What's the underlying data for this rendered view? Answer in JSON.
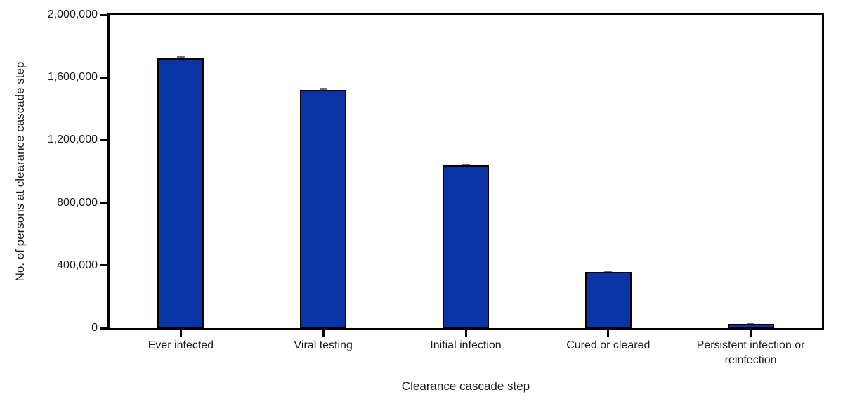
{
  "figure": {
    "background_color": "#ffffff",
    "axis_color": "#000000",
    "text_color": "#1a1a1a"
  },
  "chart_data": {
    "type": "bar",
    "title": "",
    "xlabel": "Clearance cascade step",
    "ylabel": "No. of persons at clearance cascade step",
    "categories": [
      "Ever infected",
      "Viral testing",
      "Initial infection",
      "Cured or cleared",
      "Persistent infection or\nreinfection"
    ],
    "values": [
      1720000,
      1520000,
      1040000,
      360000,
      25000
    ],
    "errors": [
      15000,
      12000,
      10000,
      4000,
      2000
    ],
    "ylim": [
      0,
      2000000
    ],
    "yticks": [
      {
        "value": 0,
        "label": "0"
      },
      {
        "value": 400000,
        "label": "400,000"
      },
      {
        "value": 800000,
        "label": "800,000"
      },
      {
        "value": 1200000,
        "label": "1,200,000"
      },
      {
        "value": 1600000,
        "label": "1,600,000"
      },
      {
        "value": 2000000,
        "label": "2,000,000"
      }
    ],
    "grid": false,
    "legend": null,
    "bar_color": "#0834a6",
    "bar_border_color": "#000000",
    "error_bar_color": "#6f6f6f"
  }
}
